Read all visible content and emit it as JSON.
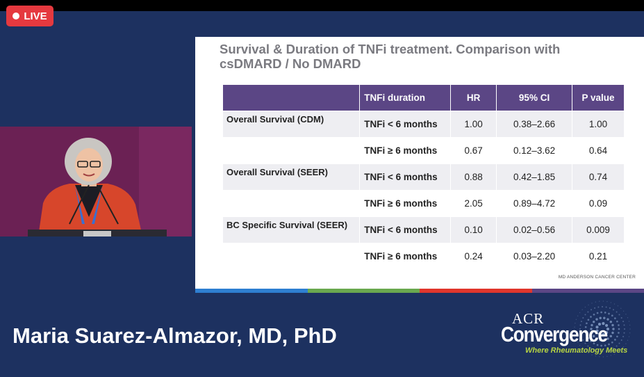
{
  "live_badge": {
    "label": "LIVE"
  },
  "slide": {
    "title_line1": "Survival & Duration of TNFi treatment. Comparison with",
    "title_line2": "csDMARD / No DMARD",
    "table": {
      "headers": [
        "",
        "TNFi duration",
        "HR",
        "95% CI",
        "P value"
      ],
      "groups": [
        {
          "label": "Overall Survival (CDM)",
          "rows": [
            {
              "duration": "TNFi < 6 months",
              "hr": "1.00",
              "ci": "0.38–2.66",
              "p": "1.00"
            },
            {
              "duration": "TNFi ≥ 6 months",
              "hr": "0.67",
              "ci": "0.12–3.62",
              "p": "0.64"
            }
          ]
        },
        {
          "label": "Overall Survival (SEER)",
          "rows": [
            {
              "duration": "TNFi < 6 months",
              "hr": "0.88",
              "ci": "0.42–1.85",
              "p": "0.74"
            },
            {
              "duration": "TNFi ≥ 6 months",
              "hr": "2.05",
              "ci": "0.89–4.72",
              "p": "0.09"
            }
          ]
        },
        {
          "label": "BC Specific Survival (SEER)",
          "rows": [
            {
              "duration": "TNFi < 6 months",
              "hr": "0.10",
              "ci": "0.02–0.56",
              "p": "0.009"
            },
            {
              "duration": "TNFi ≥ 6 months",
              "hr": "0.24",
              "ci": "0.03–2.20",
              "p": "0.21"
            }
          ]
        }
      ]
    },
    "footer": "MD ANDERSON CANCER CENTER",
    "bar_colors": [
      "#2e7fd1",
      "#6aa84f",
      "#e0362c",
      "#5b4685"
    ]
  },
  "speaker": {
    "name": "Maria Suarez-Almazor, MD, PhD"
  },
  "logo": {
    "acr": "ACR",
    "convergence": "Convergence",
    "tagline": "Where Rheumatology Meets"
  },
  "colors": {
    "background": "#1d3160",
    "live": "#e5393f",
    "table_header": "#5b4685",
    "speaker_backdrop": "#6b2154",
    "tagline": "#b7d443"
  }
}
